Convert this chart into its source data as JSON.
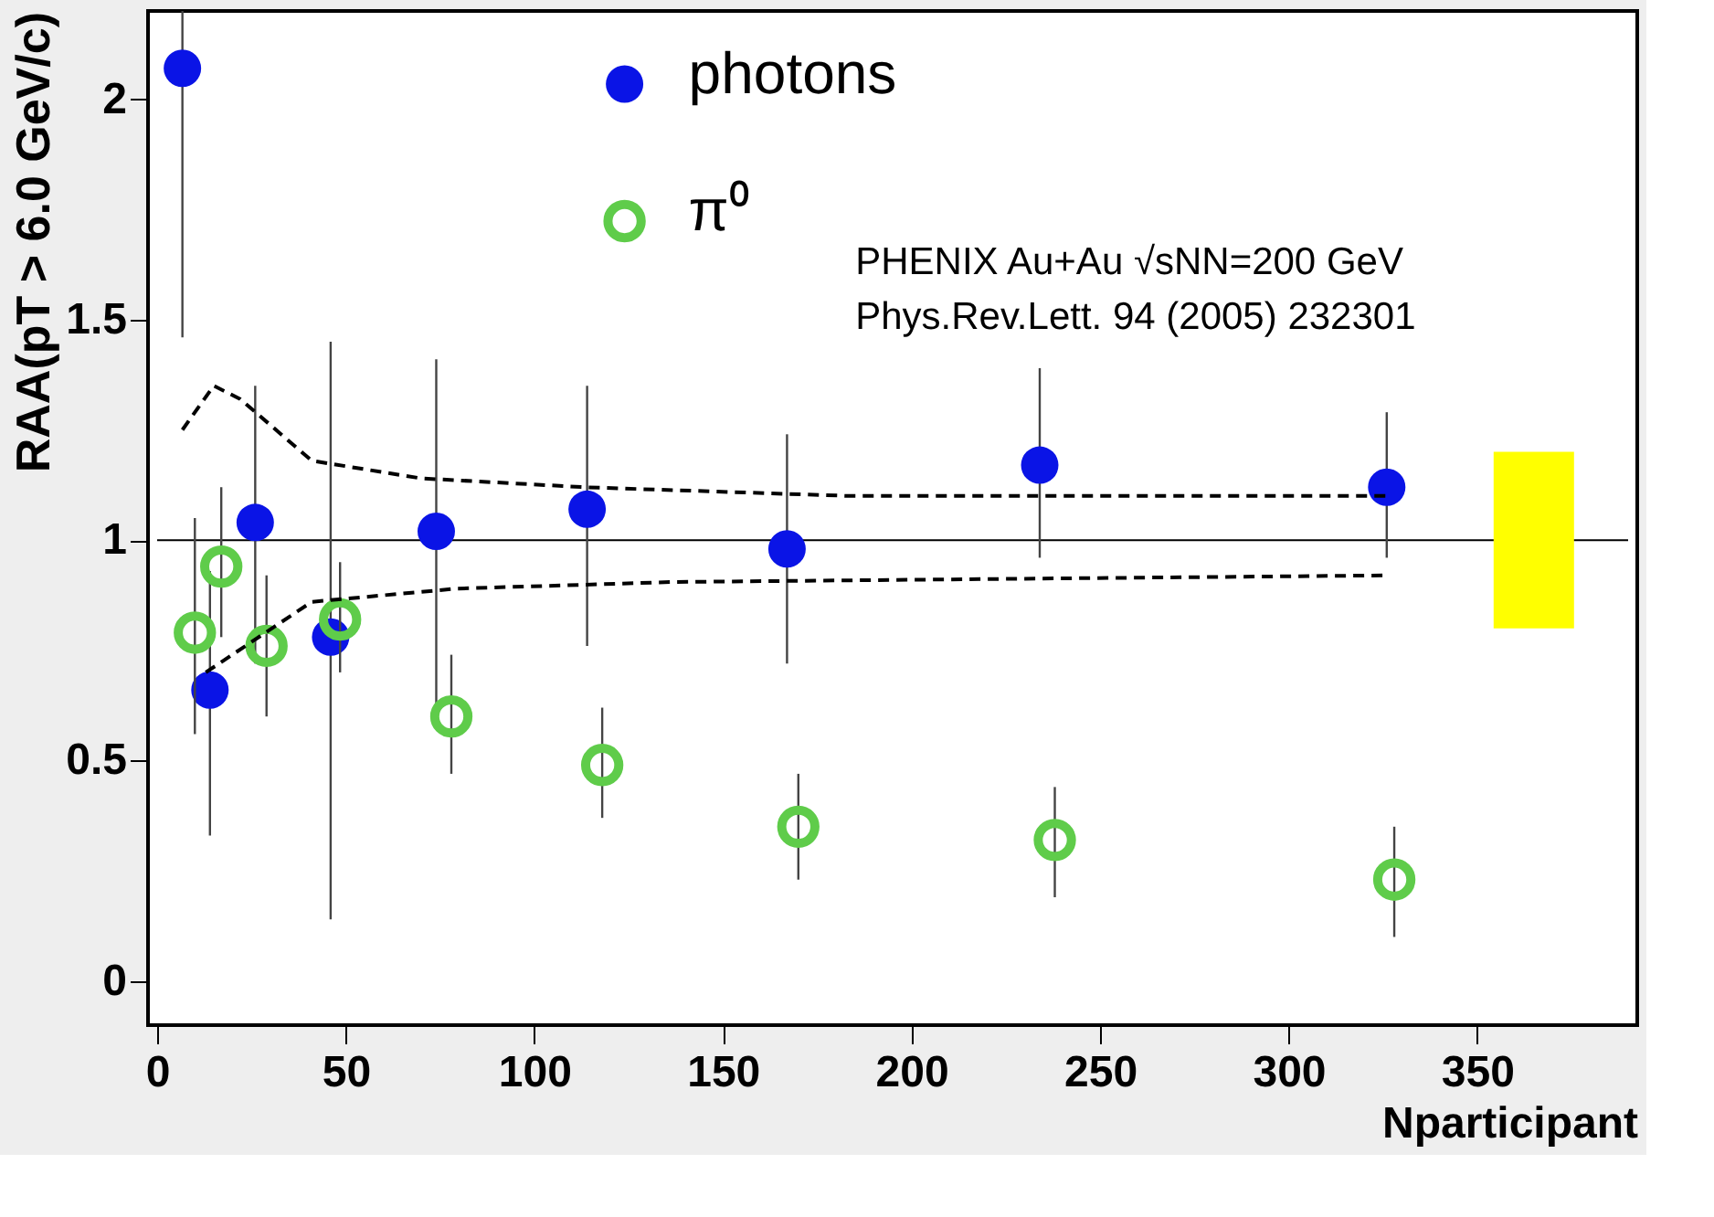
{
  "chart_data": {
    "type": "scatter",
    "xlabel": "Nparticipant",
    "ylabel": "RAA(pT > 6.0 GeV/c)",
    "xlim": [
      0,
      390
    ],
    "ylim": [
      -0.1,
      2.2
    ],
    "xticks": [
      0,
      50,
      100,
      150,
      200,
      250,
      300,
      350
    ],
    "yticks": [
      0,
      0.5,
      1,
      1.5,
      2
    ],
    "grid": false,
    "legend": "top",
    "annotations": [
      "PHENIX Au+Au √sNN=200 GeV",
      "Phys.Rev.Lett. 94 (2005) 232301"
    ],
    "ref_lines": [
      {
        "axis": "y",
        "value": 1,
        "color": "#000000"
      }
    ],
    "series": [
      {
        "name": "photons",
        "marker": "circle",
        "color": "#0a14e6",
        "x": [
          6.7,
          14,
          26,
          46,
          74,
          114,
          167,
          234,
          326
        ],
        "values": [
          2.07,
          0.66,
          1.04,
          0.78,
          1.02,
          1.07,
          0.98,
          1.17,
          1.12
        ],
        "errors": [
          [
            1.46,
            2.2
          ],
          [
            0.33,
            0.93
          ],
          [
            0.72,
            1.35
          ],
          [
            0.14,
            1.45
          ],
          [
            0.62,
            1.41
          ],
          [
            0.76,
            1.35
          ],
          [
            0.72,
            1.24
          ],
          [
            0.96,
            1.39
          ],
          [
            0.96,
            1.29
          ]
        ]
      },
      {
        "name": "π⁰",
        "marker": "circle",
        "color": "#5fcc4a",
        "x": [
          10,
          17,
          29,
          48.5,
          78,
          118,
          170,
          238,
          328
        ],
        "values": [
          0.79,
          0.94,
          0.76,
          0.82,
          0.6,
          0.49,
          0.35,
          0.32,
          0.23
        ],
        "errors": [
          [
            0.56,
            1.05
          ],
          [
            0.78,
            1.12
          ],
          [
            0.6,
            0.92
          ],
          [
            0.7,
            0.95
          ],
          [
            0.47,
            0.74
          ],
          [
            0.37,
            0.62
          ],
          [
            0.23,
            0.47
          ],
          [
            0.19,
            0.44
          ],
          [
            0.1,
            0.35
          ]
        ]
      },
      {
        "type": "line",
        "color": "#000000",
        "line_style": "dashed",
        "x": [
          6.7,
          15,
          22,
          41,
          70,
          113,
          184,
          326
        ],
        "values": [
          1.25,
          1.35,
          1.32,
          1.18,
          1.14,
          1.12,
          1.1,
          1.1
        ]
      },
      {
        "type": "line",
        "color": "#000000",
        "line_style": "dashed",
        "x": [
          12.9,
          41,
          79.5,
          137,
          326
        ],
        "values": [
          0.7,
          0.86,
          0.89,
          0.905,
          0.92
        ]
      },
      {
        "type": "bar",
        "color": "#ffff00",
        "x": [
          365
        ],
        "base": [
          0.8
        ],
        "values": [
          0.4
        ]
      }
    ]
  }
}
